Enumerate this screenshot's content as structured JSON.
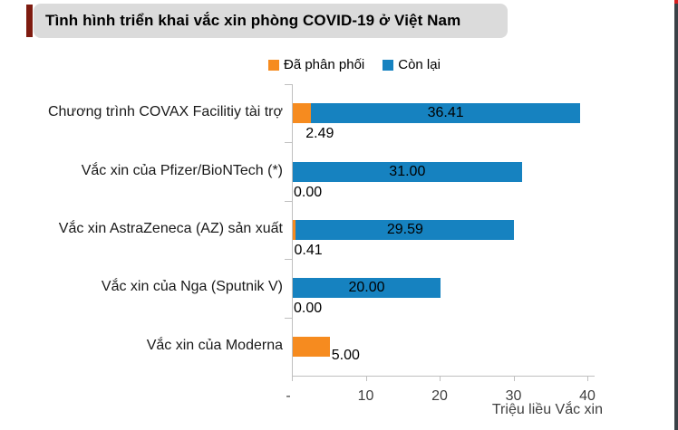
{
  "title": {
    "text": "Tình hình triển khai vắc xin phòng COVID-19 ở Việt Nam"
  },
  "decor": {
    "title_accent_color": "#7e1b10",
    "title_box_bg": "#dbdbdb",
    "right_strip_color": "#3a4147",
    "right_strip_tip_color": "#d61f1f",
    "axis_color": "#bfbfbf"
  },
  "chart_data": {
    "type": "bar",
    "orientation": "horizontal",
    "stacked": true,
    "title": "Tình hình triển khai vắc xin phòng COVID-19 ở Việt Nam",
    "categories": [
      "Chương trình COVAX Facilitiy tài trợ",
      "Vắc xin của Pfizer/BioNTech (*)",
      "Vắc xin AstraZeneca (AZ) sản xuất",
      "Vắc xin của Nga (Sputnik V)",
      "Vắc xin của Moderna"
    ],
    "series": [
      {
        "name": "Đã phân phối",
        "color": "#f68b1f",
        "values": [
          2.49,
          0.0,
          0.41,
          0.0,
          5.0
        ]
      },
      {
        "name": "Còn lại",
        "color": "#1682c0",
        "values": [
          36.41,
          31.0,
          29.59,
          20.0,
          0.0
        ]
      }
    ],
    "value_labels": {
      "distributed": [
        "2.49",
        "0.00",
        "0.41",
        "0.00",
        "5.00"
      ],
      "remaining": [
        "36.41",
        "31.00",
        "29.59",
        "20.00",
        ""
      ]
    },
    "xlabel": "Triệu liều Vắc xin",
    "x_ticks": [
      "-",
      "10",
      "20",
      "30",
      "40"
    ],
    "x_tick_values": [
      0,
      10,
      20,
      30,
      40
    ],
    "xlim": [
      0,
      40
    ],
    "grid": false,
    "legend_position": "top"
  }
}
